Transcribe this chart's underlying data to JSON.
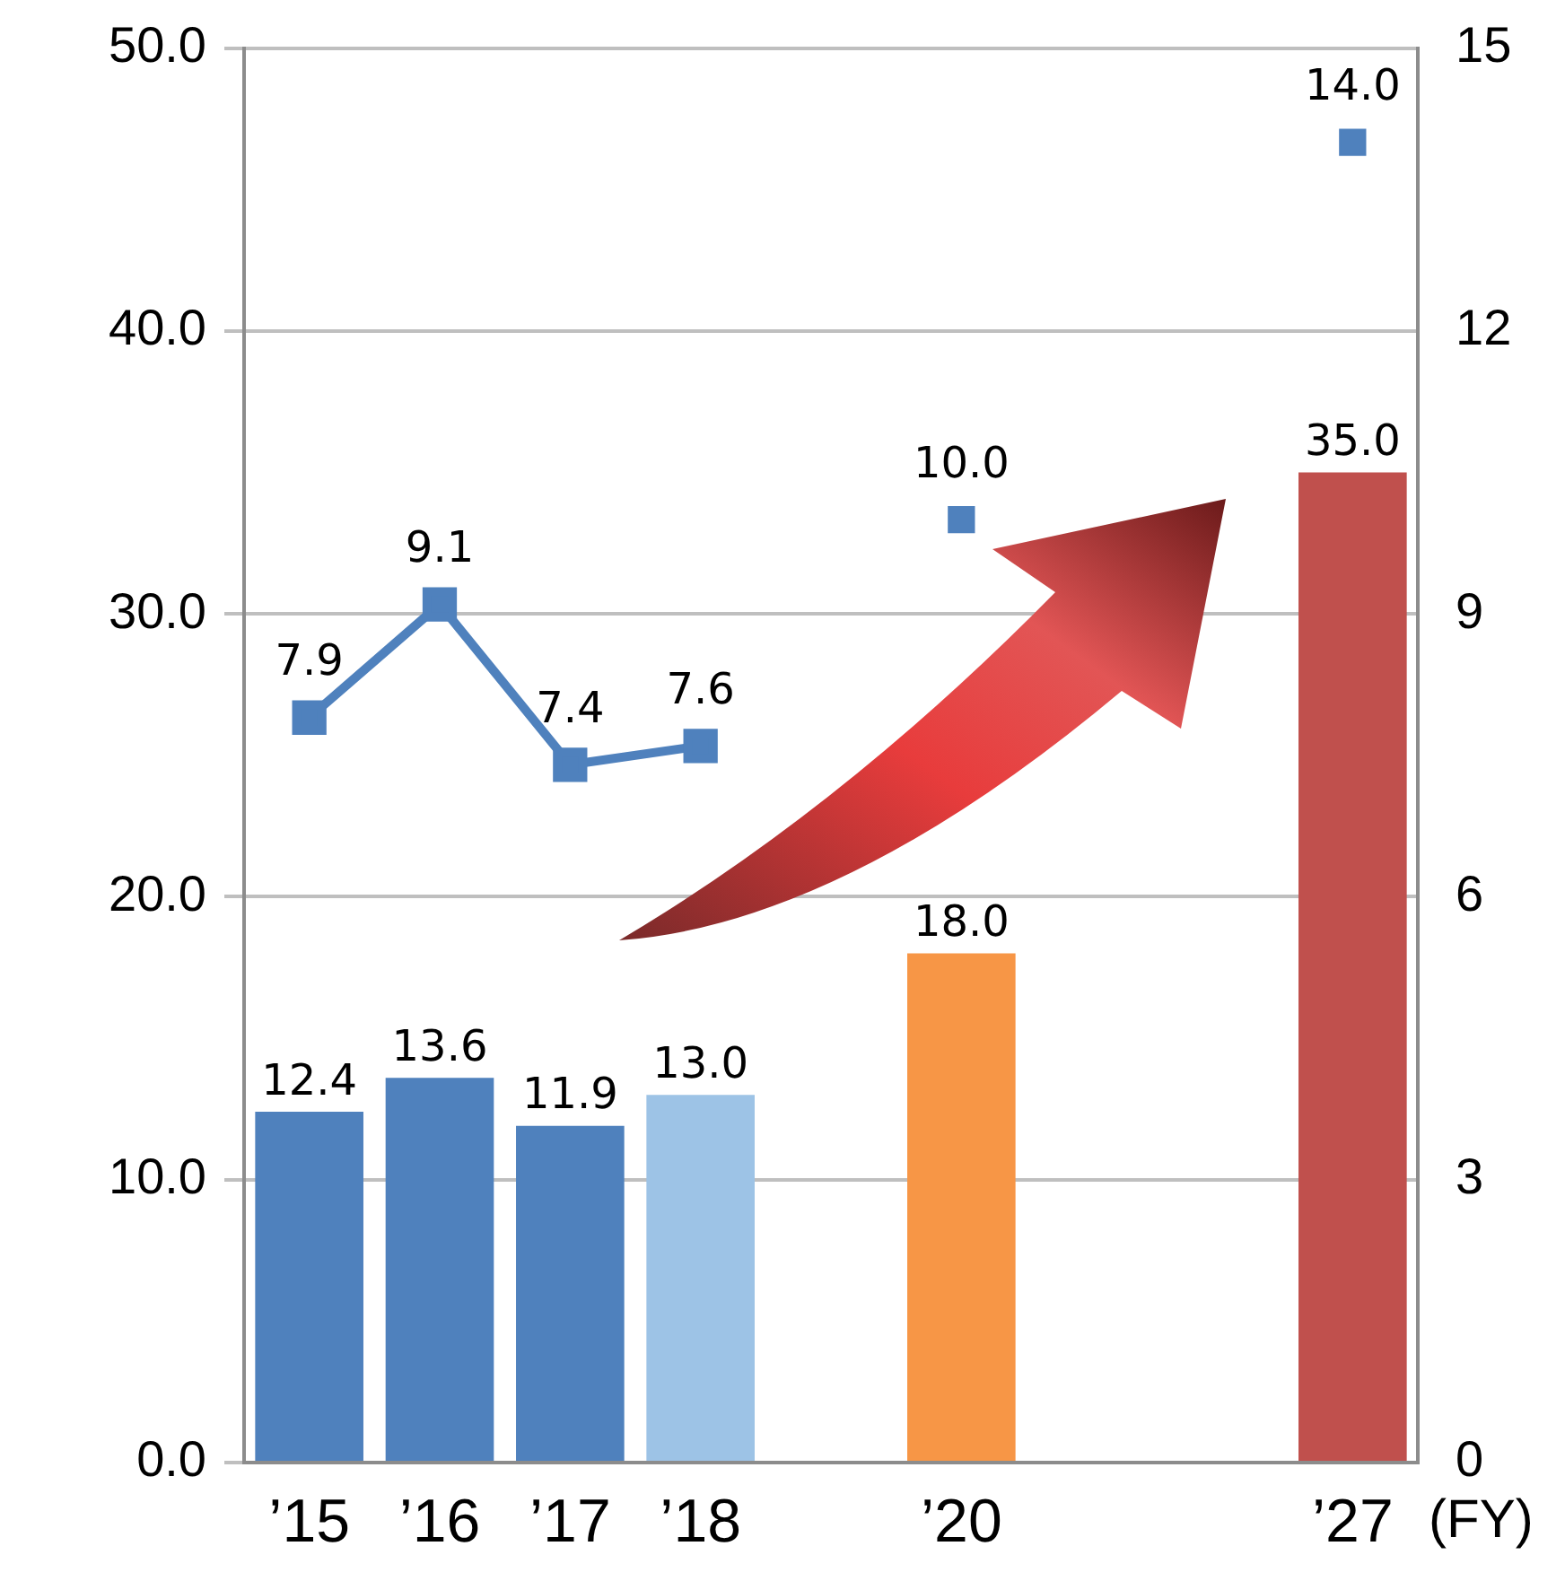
{
  "chart_data": {
    "type": "bar",
    "categories": [
      "’15",
      "’16",
      "’17",
      "’18",
      null,
      "’20",
      null,
      null,
      "’27"
    ],
    "xlabel": "(FY)",
    "series": [
      {
        "colors": [
          "#4f81bd",
          "#4f81bd",
          "#4f81bd",
          "#9dc3e6",
          null,
          "#f79646",
          null,
          null,
          "#c0504d"
        ],
        "values": [
          12.4,
          13.6,
          11.9,
          13.0,
          null,
          18.0,
          null,
          null,
          35.0
        ],
        "value_labels": [
          "12.4",
          "13.6",
          "11.9",
          "13.0",
          null,
          "18.0",
          null,
          null,
          "35.0"
        ]
      },
      {
        "type": "line",
        "axis": "y2",
        "color": "#4f81bd",
        "values": [
          7.9,
          9.1,
          7.4,
          7.6,
          null,
          null,
          null,
          null,
          null
        ],
        "value_labels": [
          "7.9",
          "9.1",
          "7.4",
          "7.6",
          null,
          null,
          null,
          null,
          null
        ]
      },
      {
        "type": "scatter",
        "axis": "y2",
        "color": "#4f81bd",
        "values": [
          null,
          null,
          null,
          null,
          null,
          10.0,
          null,
          null,
          14.0
        ],
        "value_labels": [
          null,
          null,
          null,
          null,
          null,
          "10.0",
          null,
          null,
          "14.0"
        ]
      }
    ],
    "ylim": [
      0,
      50
    ],
    "yticks": [
      {
        "value": 0,
        "label": "0.0"
      },
      {
        "value": 10,
        "label": "10.0"
      },
      {
        "value": 20,
        "label": "20.0"
      },
      {
        "value": 30,
        "label": "30.0"
      },
      {
        "value": 40,
        "label": "40.0"
      },
      {
        "value": 50,
        "label": "50.0"
      }
    ],
    "y2lim": [
      0,
      15
    ],
    "y2ticks": [
      0,
      3,
      6,
      9,
      12,
      15
    ],
    "grid": "y",
    "legend": false,
    "marker": "square",
    "line_style": "solid"
  }
}
